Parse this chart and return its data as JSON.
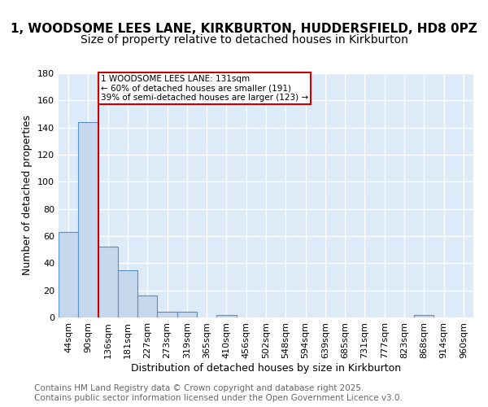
{
  "title_line1": "1, WOODSOME LEES LANE, KIRKBURTON, HUDDERSFIELD, HD8 0PZ",
  "title_line2": "Size of property relative to detached houses in Kirkburton",
  "xlabel": "Distribution of detached houses by size in Kirkburton",
  "ylabel": "Number of detached properties",
  "bin_labels": [
    "44sqm",
    "90sqm",
    "136sqm",
    "181sqm",
    "227sqm",
    "273sqm",
    "319sqm",
    "365sqm",
    "410sqm",
    "456sqm",
    "502sqm",
    "548sqm",
    "594sqm",
    "639sqm",
    "685sqm",
    "731sqm",
    "777sqm",
    "823sqm",
    "868sqm",
    "914sqm",
    "960sqm"
  ],
  "values": [
    63,
    144,
    52,
    35,
    16,
    4,
    4,
    0,
    2,
    0,
    0,
    0,
    0,
    0,
    0,
    0,
    0,
    0,
    2,
    0,
    0
  ],
  "bar_color": "#c5d8ed",
  "bar_edge_color": "#5a8fc2",
  "vline_color": "#cc0000",
  "annotation_text": "1 WOODSOME LEES LANE: 131sqm\n← 60% of detached houses are smaller (191)\n39% of semi-detached houses are larger (123) →",
  "annotation_box_color": "#cc0000",
  "ylim": [
    0,
    180
  ],
  "yticks": [
    0,
    20,
    40,
    60,
    80,
    100,
    120,
    140,
    160,
    180
  ],
  "footer_line1": "Contains HM Land Registry data © Crown copyright and database right 2025.",
  "footer_line2": "Contains public sector information licensed under the Open Government Licence v3.0.",
  "plot_bg_color": "#ddeaf7",
  "fig_bg_color": "#ffffff",
  "grid_color": "#ffffff",
  "title_fontsize": 11,
  "subtitle_fontsize": 10,
  "axis_label_fontsize": 9,
  "tick_fontsize": 8,
  "footer_fontsize": 7.5
}
